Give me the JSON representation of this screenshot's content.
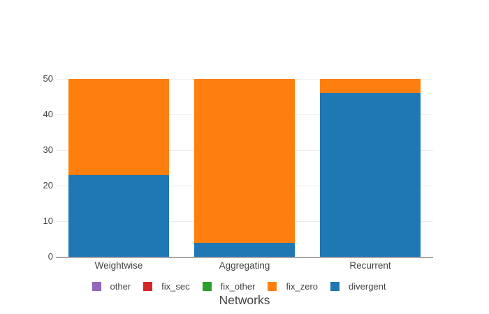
{
  "chart_data": {
    "type": "bar",
    "stacked": true,
    "title": "",
    "xlabel": "Networks",
    "ylabel": "",
    "categories": [
      "Weightwise",
      "Aggregating",
      "Recurrent"
    ],
    "series": [
      {
        "name": "other",
        "color": "#9467bd",
        "values": [
          0,
          0,
          0
        ]
      },
      {
        "name": "fix_sec",
        "color": "#d62728",
        "values": [
          0,
          0,
          0
        ]
      },
      {
        "name": "fix_other",
        "color": "#2ca02c",
        "values": [
          0,
          0,
          0
        ]
      },
      {
        "name": "fix_zero",
        "color": "#ff7f0e",
        "values": [
          27,
          46,
          4
        ]
      },
      {
        "name": "divergent",
        "color": "#1f77b4",
        "values": [
          23,
          4,
          46
        ]
      }
    ],
    "stack_bottom_to_top": [
      "divergent",
      "fix_zero",
      "fix_other",
      "fix_sec",
      "other"
    ],
    "ylim": [
      0,
      50
    ],
    "yticks": [
      0,
      10,
      20,
      30,
      40,
      50
    ],
    "grid": true,
    "legend_position": "bottom-center",
    "theme": {
      "background": "#ffffff",
      "text_color": "#444444",
      "grid_color": "#ececec",
      "axis_line_color": "#a6a6a6"
    }
  }
}
